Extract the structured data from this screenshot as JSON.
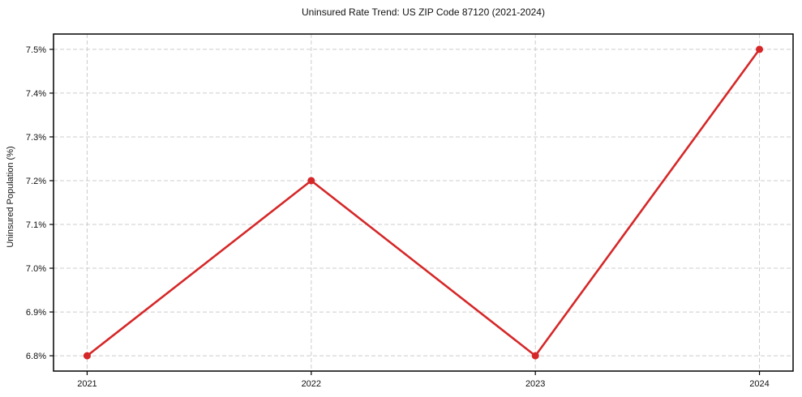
{
  "figure": {
    "background": "#ffffff"
  },
  "chart_data": {
    "type": "line",
    "title": "Uninsured Rate Trend: US ZIP Code 87120 (2021-2024)",
    "xlabel": "",
    "ylabel": "Uninsured Population (%)",
    "x": [
      2021,
      2022,
      2023,
      2024
    ],
    "y": [
      6.8,
      7.2,
      6.8,
      7.5
    ],
    "x_tick_labels": [
      "2021",
      "2022",
      "2023",
      "2024"
    ],
    "y_ticks": [
      6.8,
      6.9,
      7.0,
      7.1,
      7.2,
      7.3,
      7.4,
      7.5
    ],
    "y_tick_labels": [
      "6.8%",
      "6.9%",
      "7.0%",
      "7.1%",
      "7.2%",
      "7.3%",
      "7.4%",
      "7.5%"
    ],
    "xlim": [
      2020.85,
      2024.15
    ],
    "ylim": [
      6.765,
      7.535
    ],
    "grid": true,
    "grid_style": "dashed",
    "legend": null,
    "line_color": "#d62728",
    "marker": "circle",
    "grid_color": "#cccccc",
    "spine_color": "#000000",
    "text_color": "#111111"
  }
}
